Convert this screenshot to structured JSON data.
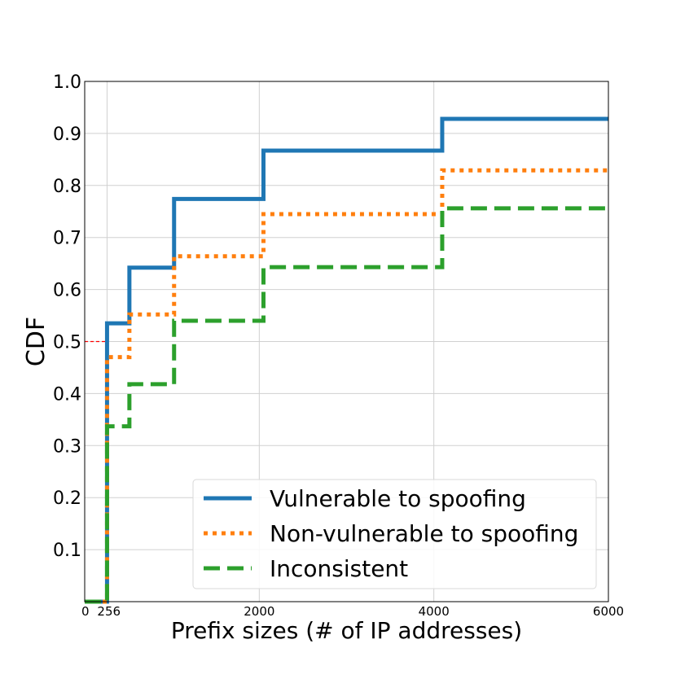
{
  "chart_data": {
    "type": "line",
    "step": true,
    "xlabel": "Prefix sizes (# of IP addresses)",
    "ylabel": "CDF",
    "xlim": [
      0,
      6000
    ],
    "ylim": [
      0,
      1.0
    ],
    "x_ticks": [
      0,
      256,
      2000,
      4000,
      6000
    ],
    "x_tick_labels": [
      "0",
      "256",
      "2000",
      "4000",
      "6000"
    ],
    "y_ticks": [
      0.1,
      0.2,
      0.3,
      0.4,
      0.5,
      0.6,
      0.7,
      0.8,
      0.9,
      1.0
    ],
    "y_tick_labels": [
      "0.1",
      "0.2",
      "0.3",
      "0.4",
      "0.5",
      "0.6",
      "0.7",
      "0.8",
      "0.9",
      "1.0"
    ],
    "grid": true,
    "legend_position": "bottom-right",
    "median_reference": {
      "x": 256,
      "y": 0.5,
      "color": "#ff0000"
    },
    "series": [
      {
        "name": "Vulnerable to spoofing",
        "color": "#1f77b4",
        "style": "solid",
        "x": [
          0,
          256,
          256,
          512,
          512,
          1024,
          1024,
          2048,
          2048,
          4096,
          4096,
          6000
        ],
        "y": [
          0.0,
          0.0,
          0.535,
          0.535,
          0.642,
          0.642,
          0.774,
          0.774,
          0.867,
          0.867,
          0.928,
          0.928
        ]
      },
      {
        "name": "Non-vulnerable to spoofing",
        "color": "#ff7f0e",
        "style": "dotted",
        "x": [
          0,
          256,
          256,
          512,
          512,
          1024,
          1024,
          2048,
          2048,
          4096,
          4096,
          6000
        ],
        "y": [
          0.0,
          0.0,
          0.47,
          0.47,
          0.552,
          0.552,
          0.664,
          0.664,
          0.745,
          0.745,
          0.829,
          0.829
        ]
      },
      {
        "name": "Inconsistent",
        "color": "#2ca02c",
        "style": "dashed",
        "x": [
          0,
          256,
          256,
          512,
          512,
          1024,
          1024,
          2048,
          2048,
          4096,
          4096,
          6000
        ],
        "y": [
          0.0,
          0.0,
          0.337,
          0.337,
          0.418,
          0.418,
          0.54,
          0.54,
          0.643,
          0.643,
          0.756,
          0.756
        ]
      }
    ]
  }
}
